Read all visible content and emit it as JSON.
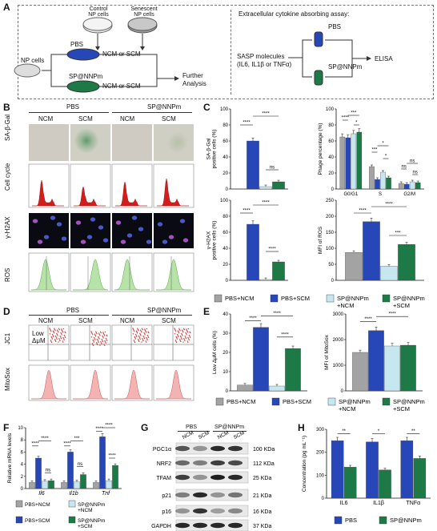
{
  "panels": {
    "A": "A",
    "B": "B",
    "C": "C",
    "D": "D",
    "E": "E",
    "F": "F",
    "G": "G",
    "H": "H"
  },
  "colors": {
    "ncm": "#a3a3a3",
    "scm": "#2747b8",
    "sp_ncm": "#c6e7f0",
    "sp_scm": "#1d7a46",
    "pbs": "#2747b8",
    "sp": "#1d7a46"
  },
  "panelA": {
    "control_np": "Control\nNP cells",
    "senescent_np": "Senescent\nNP cells",
    "pbs": "PBS",
    "ncm_or_scm_1": "NCM  or  SCM",
    "np_cells": "NP cells",
    "sp_nnpm": "SP@NNPm",
    "ncm_or_scm_2": "NCM  or  SCM",
    "further": "Further\nAnalysis",
    "assay_title": "Extracellular cytokine absorbing assay:",
    "assay_pbs": "PBS",
    "assay_sp": "SP@NNPm",
    "sasp": "SASP molecules\n(IL6, IL1β or TNFα)",
    "elisa": "ELISA"
  },
  "panelB": {
    "group1": "PBS",
    "group2": "SP@NNPm",
    "cols": [
      "NCM",
      "SCM",
      "NCM",
      "SCM"
    ],
    "rows": [
      "SA-β-Gal",
      "Cell cycle",
      "γ-H2AX",
      "ROS"
    ]
  },
  "panelC": {
    "sagal": {
      "ylabel": "SA-β-Gal\npositive cells (%)",
      "yticks": [
        "0",
        "20",
        "40",
        "60",
        "80",
        "100"
      ],
      "ylim": [
        0,
        100
      ],
      "values": [
        0,
        60,
        3,
        9
      ],
      "sig": [
        "****",
        "****",
        "ns"
      ]
    },
    "phase": {
      "ylabel": "Phage percentage (%)",
      "yticks": [
        "0",
        "20",
        "40",
        "60",
        "80",
        "100"
      ],
      "ylim": [
        0,
        100
      ],
      "categories": [
        "G0/G1",
        "S",
        "G2/M"
      ],
      "series": [
        [
          65,
          28,
          7
        ],
        [
          64,
          12,
          6
        ],
        [
          69,
          21,
          9
        ],
        [
          71,
          14,
          8
        ]
      ],
      "sig": [
        "****",
        "***",
        "*",
        "***",
        "*",
        "*",
        "ns",
        "ns",
        "ns"
      ]
    },
    "h2ax": {
      "ylabel": "γ-H2AX\npositive cells (%)",
      "yticks": [
        "0",
        "20",
        "40",
        "60",
        "80",
        "100"
      ],
      "ylim": [
        0,
        100
      ],
      "values": [
        0,
        70,
        1,
        23
      ],
      "sig": [
        "****",
        "****",
        "****"
      ]
    },
    "ros": {
      "ylabel": "MFI of ROS",
      "yticks": [
        "0",
        "50",
        "100",
        "150",
        "200",
        "250"
      ],
      "ylim": [
        0,
        250
      ],
      "values": [
        87,
        183,
        44,
        112
      ],
      "sig": [
        "****",
        "****",
        "***"
      ]
    }
  },
  "legendC": [
    "PBS+NCM",
    "PBS+SCM",
    "SP@NNPm\n+NCM",
    "SP@NNPm\n+SCM"
  ],
  "panelD": {
    "group1": "PBS",
    "group2": "SP@NNPm",
    "cols": [
      "NCM",
      "SCM",
      "NCM",
      "SCM"
    ],
    "rows": [
      "JC1",
      "MitoSox"
    ],
    "low": "Low\nΔμM"
  },
  "panelE": {
    "lowdm": {
      "ylabel": "Low ΔμM cells (%)",
      "yticks": [
        "0",
        "10",
        "20",
        "30",
        "40"
      ],
      "ylim": [
        0,
        40
      ],
      "values": [
        3,
        33,
        2.5,
        22
      ],
      "sig": [
        "****",
        "****",
        "****"
      ]
    },
    "mitosox": {
      "ylabel": "MFI of MitoSox",
      "yticks": [
        "0",
        "1000",
        "2000",
        "3000"
      ],
      "ylim": [
        0,
        3000
      ],
      "values": [
        1500,
        2350,
        1750,
        1780
      ],
      "sig": [
        "****",
        "****"
      ]
    }
  },
  "legendE": [
    "PBS+NCM",
    "PBS+SCM",
    "SP@NNPm\n+NCM",
    "SP@NNPm\n+SCM"
  ],
  "panelF": {
    "ylabel": "Relative mRNA levels",
    "yticks": [
      "0",
      "2",
      "4",
      "6",
      "8",
      "10"
    ],
    "ylim": [
      0,
      10
    ],
    "categories": [
      "Il6",
      "Il1b",
      "Tnf"
    ],
    "series": [
      [
        1,
        1,
        1
      ],
      [
        5,
        6,
        8.5
      ],
      [
        1.2,
        1.1,
        1.3
      ],
      [
        1.3,
        2.3,
        3.8
      ]
    ],
    "sig": [
      "****",
      "****",
      "ns",
      "****",
      "***",
      "ns",
      "****",
      "****",
      "****"
    ]
  },
  "legendF": [
    "PBS+NCM",
    "SP@NNPm\n+NCM",
    "PBS+SCM",
    "SP@NNPm\n+SCM"
  ],
  "panelG": {
    "group1": "PBS",
    "group2": "SP@NNPm",
    "cols": [
      "NCM",
      "SCM",
      "NCM",
      "SCM"
    ],
    "proteins": [
      "PGC1α",
      "NRF2",
      "TFAM",
      "p21",
      "p16",
      "GAPDH"
    ],
    "sizes": [
      "100 KDa",
      "112 KDa",
      "25 KDa",
      "21 KDa",
      "16 KDa",
      "37 KDa"
    ]
  },
  "panelH": {
    "ylabel": "Concentration (pg mL⁻¹)",
    "yticks": [
      "0",
      "100",
      "200",
      "300"
    ],
    "ylim": [
      0,
      300
    ],
    "categories": [
      "IL6",
      "IL1β",
      "TNFα"
    ],
    "series": [
      {
        "name": "PBS",
        "values": [
          250,
          245,
          250
        ]
      },
      {
        "name": "SP@NNPm",
        "values": [
          135,
          123,
          173
        ]
      }
    ],
    "sig": [
      "**",
      "*",
      "**"
    ]
  },
  "chart_data": [
    {
      "type": "bar",
      "title": "",
      "ylabel": "SA-β-Gal positive cells (%)",
      "categories": [
        "PBS+NCM",
        "PBS+SCM",
        "SP@NNPm+NCM",
        "SP@NNPm+SCM"
      ],
      "values": [
        0,
        60,
        3,
        9
      ],
      "ylim": [
        0,
        100
      ]
    },
    {
      "type": "bar",
      "ylabel": "Phage percentage (%)",
      "categories": [
        "G0/G1",
        "S",
        "G2/M"
      ],
      "series": [
        {
          "name": "PBS+NCM",
          "values": [
            65,
            28,
            7
          ]
        },
        {
          "name": "PBS+SCM",
          "values": [
            64,
            12,
            6
          ]
        },
        {
          "name": "SP@NNPm+NCM",
          "values": [
            69,
            21,
            9
          ]
        },
        {
          "name": "SP@NNPm+SCM",
          "values": [
            71,
            14,
            8
          ]
        }
      ],
      "ylim": [
        0,
        100
      ]
    },
    {
      "type": "bar",
      "ylabel": "γ-H2AX positive cells (%)",
      "categories": [
        "PBS+NCM",
        "PBS+SCM",
        "SP@NNPm+NCM",
        "SP@NNPm+SCM"
      ],
      "values": [
        0,
        70,
        1,
        23
      ],
      "ylim": [
        0,
        100
      ]
    },
    {
      "type": "bar",
      "ylabel": "MFI of ROS",
      "categories": [
        "PBS+NCM",
        "PBS+SCM",
        "SP@NNPm+NCM",
        "SP@NNPm+SCM"
      ],
      "values": [
        87,
        183,
        44,
        112
      ],
      "ylim": [
        0,
        250
      ]
    },
    {
      "type": "bar",
      "ylabel": "Low ΔμM cells (%)",
      "categories": [
        "PBS+NCM",
        "PBS+SCM",
        "SP@NNPm+NCM",
        "SP@NNPm+SCM"
      ],
      "values": [
        3,
        33,
        2.5,
        22
      ],
      "ylim": [
        0,
        40
      ]
    },
    {
      "type": "bar",
      "ylabel": "MFI of MitoSox",
      "categories": [
        "PBS+NCM",
        "PBS+SCM",
        "SP@NNPm+NCM",
        "SP@NNPm+SCM"
      ],
      "values": [
        1500,
        2350,
        1750,
        1780
      ],
      "ylim": [
        0,
        3000
      ]
    },
    {
      "type": "bar",
      "ylabel": "Relative mRNA levels",
      "categories": [
        "Il6",
        "Il1b",
        "Tnf"
      ],
      "series": [
        {
          "name": "PBS+NCM",
          "values": [
            1,
            1,
            1
          ]
        },
        {
          "name": "PBS+SCM",
          "values": [
            5,
            6,
            8.5
          ]
        },
        {
          "name": "SP@NNPm+NCM",
          "values": [
            1.2,
            1.1,
            1.3
          ]
        },
        {
          "name": "SP@NNPm+SCM",
          "values": [
            1.3,
            2.3,
            3.8
          ]
        }
      ],
      "ylim": [
        0,
        10
      ]
    },
    {
      "type": "bar",
      "ylabel": "Concentration (pg mL⁻¹)",
      "categories": [
        "IL6",
        "IL1β",
        "TNFα"
      ],
      "series": [
        {
          "name": "PBS",
          "values": [
            250,
            245,
            250
          ]
        },
        {
          "name": "SP@NNPm",
          "values": [
            135,
            123,
            173
          ]
        }
      ],
      "ylim": [
        0,
        300
      ]
    }
  ]
}
